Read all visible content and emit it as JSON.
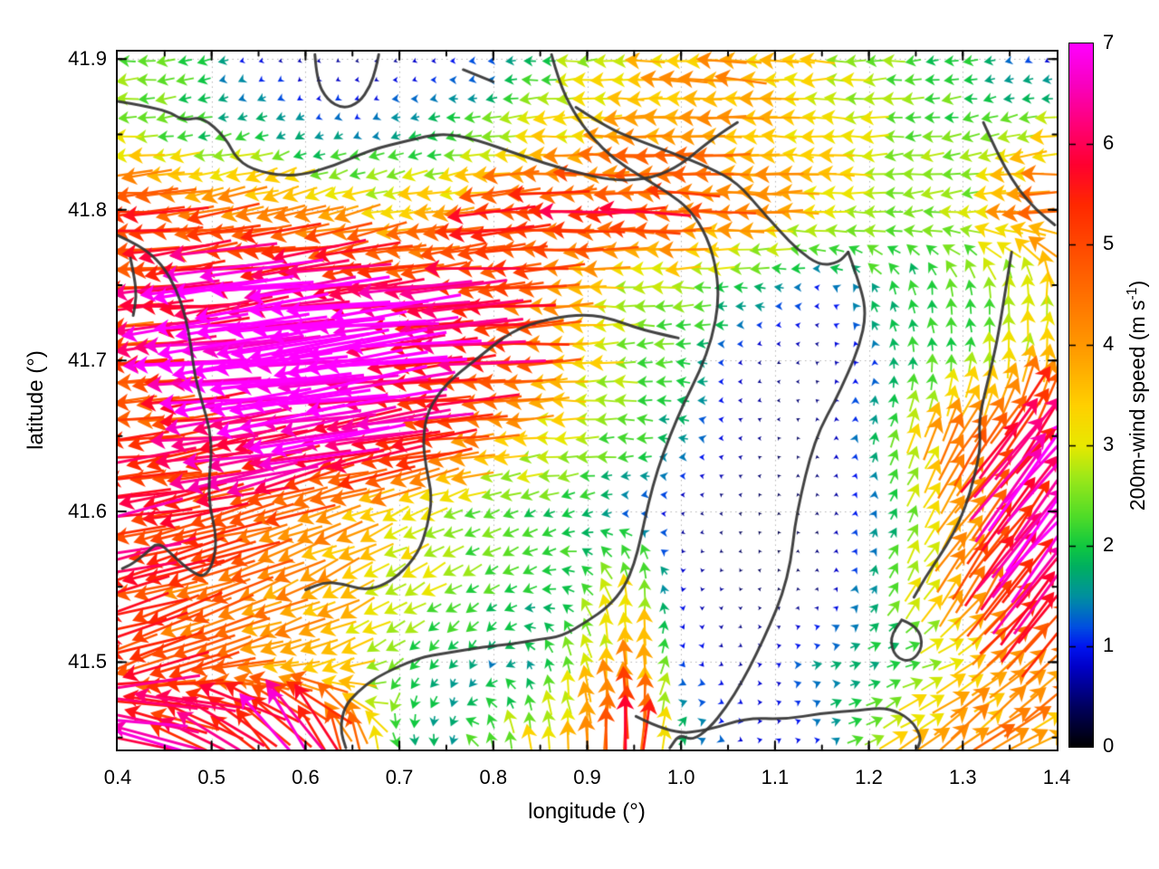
{
  "chart_data": {
    "type": "quiver+contour",
    "title": "",
    "xlabel": "longitude (°)",
    "ylabel": "latitude (°)",
    "x_range": [
      0.4,
      1.4
    ],
    "y_range": [
      41.442,
      41.905
    ],
    "x_ticks": {
      "values": [
        0.4,
        0.5,
        0.6,
        0.7,
        0.8,
        0.9,
        1.0,
        1.1,
        1.2,
        1.3,
        1.4
      ],
      "labels": [
        "0.4",
        "0.5",
        "0.6",
        "0.7",
        "0.8",
        "0.9",
        "1.0",
        "1.1",
        "1.2",
        "1.3",
        "1.4"
      ]
    },
    "y_ticks": {
      "values": [
        41.5,
        41.6,
        41.7,
        41.8,
        41.9
      ],
      "labels": [
        "41.5",
        "41.6",
        "41.7",
        "41.8",
        "41.9"
      ]
    },
    "grid": "dotted",
    "grid_color": "#b5b5b5",
    "contour_color": "#333333",
    "colorbar": {
      "label_prefix": "200m-wind speed (m s",
      "label_sup": "-1",
      "label_suffix": ")",
      "range": [
        0,
        7
      ],
      "ticks": {
        "values": [
          0,
          1,
          2,
          3,
          4,
          5,
          6,
          7
        ],
        "labels": [
          "0",
          "1",
          "2",
          "3",
          "4",
          "5",
          "6",
          "7"
        ]
      },
      "stops": [
        [
          0.0,
          "#000000"
        ],
        [
          0.4,
          "#00005e"
        ],
        [
          0.8,
          "#0000c8"
        ],
        [
          1.0,
          "#0014f0"
        ],
        [
          1.2,
          "#0050e0"
        ],
        [
          1.5,
          "#0090a0"
        ],
        [
          1.8,
          "#00b060"
        ],
        [
          2.0,
          "#10c840"
        ],
        [
          2.3,
          "#50dc28"
        ],
        [
          2.7,
          "#a0e818"
        ],
        [
          3.0,
          "#e8e800"
        ],
        [
          3.4,
          "#ffd000"
        ],
        [
          3.9,
          "#ffa000"
        ],
        [
          4.4,
          "#ff7800"
        ],
        [
          4.9,
          "#ff5000"
        ],
        [
          5.4,
          "#ff2800"
        ],
        [
          5.8,
          "#ff0030"
        ],
        [
          6.2,
          "#ff0078"
        ],
        [
          6.6,
          "#f800c0"
        ],
        [
          7.0,
          "#ff00ff"
        ]
      ]
    },
    "wind_grid": {
      "comment_units": "speed m/s (0-7); dir degrees CCW from east (180=westward arrow, 90=northward)",
      "lon_start": 0.4,
      "lon_step": 0.05,
      "lats": [
        41.9,
        41.85,
        41.8,
        41.75,
        41.7,
        41.65,
        41.6,
        41.55,
        41.5,
        41.45
      ],
      "speed": [
        [
          2.3,
          2.5,
          1.6,
          0.8,
          0.6,
          0.5,
          0.6,
          0.9,
          1.1,
          2.0,
          2.8,
          3.2,
          3.6,
          3.8,
          3.5,
          3.0,
          2.6,
          2.2,
          2.0,
          1.2,
          0.6
        ],
        [
          2.8,
          2.3,
          2.0,
          1.8,
          1.5,
          1.3,
          1.6,
          1.9,
          2.5,
          3.0,
          3.5,
          3.8,
          4.0,
          4.0,
          3.6,
          3.2,
          2.8,
          2.5,
          2.3,
          2.6,
          3.2
        ],
        [
          5.2,
          5.0,
          4.6,
          4.3,
          4.0,
          3.6,
          3.3,
          3.6,
          5.0,
          5.2,
          5.3,
          5.2,
          5.0,
          4.3,
          3.8,
          3.3,
          2.8,
          2.3,
          2.6,
          3.8,
          4.6
        ],
        [
          4.6,
          5.5,
          6.2,
          6.8,
          6.8,
          6.5,
          5.8,
          5.5,
          5.2,
          4.5,
          3.5,
          2.8,
          2.5,
          2.2,
          1.5,
          1.0,
          1.8,
          2.0,
          2.2,
          2.6,
          3.1
        ],
        [
          4.6,
          5.6,
          6.8,
          7.0,
          7.0,
          7.0,
          6.5,
          6.0,
          5.5,
          4.5,
          3.5,
          2.5,
          2.0,
          1.0,
          0.5,
          0.5,
          1.0,
          2.0,
          2.2,
          2.8,
          3.6
        ],
        [
          5.6,
          4.8,
          5.6,
          6.5,
          6.6,
          6.3,
          5.8,
          5.2,
          4.0,
          3.2,
          2.5,
          2.2,
          1.5,
          0.8,
          0.4,
          0.5,
          1.5,
          3.0,
          4.5,
          6.0,
          6.6
        ],
        [
          6.0,
          5.6,
          5.3,
          5.0,
          4.5,
          3.8,
          3.2,
          2.6,
          2.2,
          2.0,
          1.8,
          1.2,
          0.6,
          0.4,
          0.3,
          0.4,
          1.2,
          2.5,
          4.0,
          5.6,
          6.6
        ],
        [
          5.2,
          4.8,
          4.5,
          4.2,
          3.8,
          3.4,
          3.0,
          2.5,
          2.2,
          1.8,
          2.2,
          3.2,
          0.8,
          0.5,
          0.3,
          0.5,
          1.5,
          2.8,
          4.2,
          5.6,
          6.2
        ],
        [
          5.6,
          5.0,
          4.5,
          4.0,
          3.8,
          3.2,
          2.2,
          1.8,
          1.5,
          1.8,
          2.8,
          4.2,
          1.2,
          0.6,
          0.8,
          1.5,
          1.8,
          2.2,
          3.0,
          4.0,
          4.6
        ],
        [
          6.2,
          6.0,
          5.6,
          6.0,
          6.2,
          4.5,
          2.0,
          1.5,
          2.5,
          3.0,
          4.0,
          5.6,
          2.0,
          1.0,
          0.8,
          1.2,
          2.5,
          3.5,
          4.2,
          4.0,
          3.6
        ]
      ],
      "dir_deg": [
        [
          185,
          185,
          190,
          200,
          210,
          200,
          190,
          185,
          180,
          183,
          184,
          182,
          180,
          178,
          178,
          180,
          182,
          185,
          185,
          195,
          225
        ],
        [
          183,
          190,
          195,
          200,
          205,
          200,
          195,
          190,
          185,
          183,
          182,
          180,
          180,
          178,
          178,
          180,
          182,
          185,
          188,
          190,
          185
        ],
        [
          183,
          185,
          188,
          192,
          196,
          194,
          190,
          188,
          185,
          183,
          182,
          181,
          180,
          180,
          180,
          180,
          182,
          185,
          188,
          185,
          182
        ],
        [
          185,
          185,
          186,
          187,
          188,
          188,
          186,
          185,
          184,
          183,
          182,
          182,
          180,
          178,
          175,
          170,
          120,
          100,
          95,
          90,
          85
        ],
        [
          183,
          184,
          185,
          186,
          187,
          187,
          186,
          185,
          184,
          183,
          182,
          181,
          180,
          185,
          200,
          160,
          110,
          95,
          90,
          85,
          80
        ],
        [
          185,
          186,
          188,
          190,
          190,
          189,
          188,
          186,
          184,
          182,
          180,
          178,
          175,
          170,
          150,
          100,
          75,
          65,
          60,
          55,
          50
        ],
        [
          190,
          192,
          193,
          195,
          197,
          200,
          203,
          205,
          205,
          200,
          195,
          190,
          180,
          150,
          120,
          90,
          70,
          60,
          55,
          52,
          50
        ],
        [
          195,
          197,
          200,
          203,
          205,
          207,
          208,
          210,
          210,
          205,
          130,
          95,
          260,
          250,
          110,
          85,
          70,
          62,
          58,
          55,
          52
        ],
        [
          200,
          200,
          198,
          195,
          195,
          200,
          215,
          230,
          250,
          115,
          100,
          90,
          300,
          320,
          20,
          10,
          15,
          20,
          30,
          40,
          45
        ],
        [
          165,
          160,
          150,
          135,
          120,
          105,
          290,
          270,
          110,
          95,
          92,
          90,
          60,
          330,
          30,
          20,
          30,
          35,
          40,
          35,
          30
        ]
      ]
    },
    "contours": [
      [
        [
          0.4,
          41.872
        ],
        [
          0.45,
          41.867
        ],
        [
          0.47,
          41.859
        ],
        [
          0.49,
          41.862
        ],
        [
          0.515,
          41.848
        ],
        [
          0.527,
          41.833
        ],
        [
          0.55,
          41.825
        ],
        [
          0.59,
          41.822
        ],
        [
          0.63,
          41.829
        ],
        [
          0.67,
          41.84
        ],
        [
          0.71,
          41.846
        ],
        [
          0.745,
          41.851
        ],
        [
          0.78,
          41.847
        ],
        [
          0.83,
          41.836
        ],
        [
          0.88,
          41.826
        ],
        [
          0.93,
          41.819
        ],
        [
          0.97,
          41.821
        ],
        [
          1.0,
          41.83
        ],
        [
          1.025,
          41.843
        ],
        [
          1.045,
          41.852
        ],
        [
          1.06,
          41.858
        ]
      ],
      [
        [
          0.61,
          41.903
        ],
        [
          0.612,
          41.886
        ],
        [
          0.623,
          41.873
        ],
        [
          0.64,
          41.867
        ],
        [
          0.657,
          41.871
        ],
        [
          0.669,
          41.882
        ],
        [
          0.675,
          41.894
        ],
        [
          0.678,
          41.903
        ]
      ],
      [
        [
          0.4,
          41.783
        ],
        [
          0.425,
          41.776
        ],
        [
          0.447,
          41.764
        ],
        [
          0.462,
          41.748
        ],
        [
          0.472,
          41.73
        ],
        [
          0.478,
          41.71
        ],
        [
          0.482,
          41.69
        ],
        [
          0.49,
          41.672
        ],
        [
          0.498,
          41.655
        ],
        [
          0.5,
          41.638
        ],
        [
          0.497,
          41.62
        ],
        [
          0.498,
          41.602
        ],
        [
          0.505,
          41.585
        ],
        [
          0.503,
          41.568
        ],
        [
          0.493,
          41.556
        ],
        [
          0.478,
          41.56
        ],
        [
          0.46,
          41.57
        ],
        [
          0.443,
          41.58
        ],
        [
          0.43,
          41.572
        ],
        [
          0.415,
          41.565
        ],
        [
          0.405,
          41.562
        ]
      ],
      [
        [
          0.4135,
          41.768
        ],
        [
          0.418,
          41.755
        ],
        [
          0.42,
          41.742
        ],
        [
          0.4165,
          41.73
        ]
      ],
      [
        [
          0.862,
          41.903
        ],
        [
          0.87,
          41.885
        ],
        [
          0.885,
          41.865
        ],
        [
          0.905,
          41.848
        ],
        [
          0.928,
          41.834
        ],
        [
          0.955,
          41.823
        ],
        [
          0.985,
          41.812
        ],
        [
          1.01,
          41.8
        ],
        [
          1.028,
          41.782
        ],
        [
          1.038,
          41.76
        ],
        [
          1.04,
          41.738
        ],
        [
          1.033,
          41.715
        ],
        [
          1.02,
          41.693
        ],
        [
          1.003,
          41.672
        ],
        [
          0.988,
          41.65
        ],
        [
          0.975,
          41.628
        ],
        [
          0.965,
          41.605
        ],
        [
          0.957,
          41.582
        ],
        [
          0.95,
          41.565
        ],
        [
          0.94,
          41.55
        ],
        [
          0.923,
          41.537
        ],
        [
          0.9,
          41.527
        ],
        [
          0.873,
          41.517
        ],
        [
          0.848,
          41.515
        ],
        [
          0.82,
          41.512
        ],
        [
          0.79,
          41.51
        ],
        [
          0.75,
          41.506
        ],
        [
          0.72,
          41.503
        ],
        [
          0.675,
          41.49
        ],
        [
          0.655,
          41.48
        ],
        [
          0.641,
          41.47
        ],
        [
          0.637,
          41.455
        ],
        [
          0.643,
          41.443
        ]
      ],
      [
        [
          1.178,
          41.772
        ],
        [
          1.192,
          41.748
        ],
        [
          1.197,
          41.73
        ],
        [
          1.19,
          41.71
        ],
        [
          1.178,
          41.692
        ],
        [
          1.163,
          41.672
        ],
        [
          1.148,
          41.655
        ],
        [
          1.137,
          41.635
        ],
        [
          1.128,
          41.612
        ],
        [
          1.121,
          41.59
        ],
        [
          1.117,
          41.567
        ],
        [
          1.108,
          41.545
        ],
        [
          1.095,
          41.525
        ],
        [
          1.08,
          41.505
        ],
        [
          1.065,
          41.487
        ],
        [
          1.048,
          41.47
        ],
        [
          1.03,
          41.456
        ],
        [
          1.012,
          41.448
        ],
        [
          0.998,
          41.452
        ],
        [
          0.988,
          41.443
        ]
      ],
      [
        [
          0.888,
          41.868
        ],
        [
          0.92,
          41.855
        ],
        [
          0.95,
          41.847
        ],
        [
          0.99,
          41.838
        ],
        [
          1.03,
          41.828
        ],
        [
          1.06,
          41.818
        ],
        [
          1.085,
          41.8
        ],
        [
          1.105,
          41.786
        ],
        [
          1.125,
          41.773
        ],
        [
          1.148,
          41.763
        ],
        [
          1.168,
          41.765
        ],
        [
          1.178,
          41.772
        ]
      ],
      [
        [
          0.768,
          41.893
        ],
        [
          0.8,
          41.885
        ]
      ],
      [
        [
          1.322,
          41.858
        ],
        [
          1.333,
          41.843
        ],
        [
          1.345,
          41.828
        ],
        [
          1.36,
          41.813
        ],
        [
          1.378,
          41.8
        ],
        [
          1.398,
          41.79
        ]
      ],
      [
        [
          1.235,
          41.528
        ],
        [
          1.252,
          41.524
        ],
        [
          1.258,
          41.51
        ],
        [
          1.245,
          41.5
        ],
        [
          1.228,
          41.503
        ],
        [
          1.222,
          41.516
        ],
        [
          1.235,
          41.528
        ]
      ],
      [
        [
          0.952,
          41.464
        ],
        [
          0.99,
          41.452
        ],
        [
          1.03,
          41.455
        ],
        [
          1.07,
          41.463
        ],
        [
          1.11,
          41.462
        ],
        [
          1.15,
          41.466
        ],
        [
          1.19,
          41.468
        ],
        [
          1.22,
          41.47
        ],
        [
          1.245,
          41.462
        ],
        [
          1.256,
          41.45
        ],
        [
          1.252,
          41.443
        ]
      ],
      [
        [
          0.997,
          41.715
        ],
        [
          0.96,
          41.72
        ],
        [
          0.93,
          41.727
        ],
        [
          0.9,
          41.731
        ],
        [
          0.86,
          41.728
        ],
        [
          0.82,
          41.72
        ],
        [
          0.78,
          41.7
        ],
        [
          0.75,
          41.685
        ],
        [
          0.73,
          41.667
        ],
        [
          0.725,
          41.648
        ],
        [
          0.728,
          41.63
        ],
        [
          0.735,
          41.61
        ],
        [
          0.73,
          41.59
        ],
        [
          0.72,
          41.572
        ],
        [
          0.7,
          41.558
        ],
        [
          0.68,
          41.55
        ],
        [
          0.66,
          41.548
        ],
        [
          0.64,
          41.552
        ],
        [
          0.62,
          41.553
        ],
        [
          0.6,
          41.548
        ]
      ],
      [
        [
          1.352,
          41.772
        ],
        [
          1.345,
          41.745
        ],
        [
          1.338,
          41.718
        ],
        [
          1.332,
          41.7
        ],
        [
          1.324,
          41.68
        ],
        [
          1.317,
          41.66
        ],
        [
          1.319,
          41.642
        ],
        [
          1.312,
          41.622
        ],
        [
          1.303,
          41.603
        ],
        [
          1.29,
          41.585
        ],
        [
          1.275,
          41.57
        ],
        [
          1.26,
          41.556
        ],
        [
          1.248,
          41.543
        ]
      ]
    ]
  }
}
